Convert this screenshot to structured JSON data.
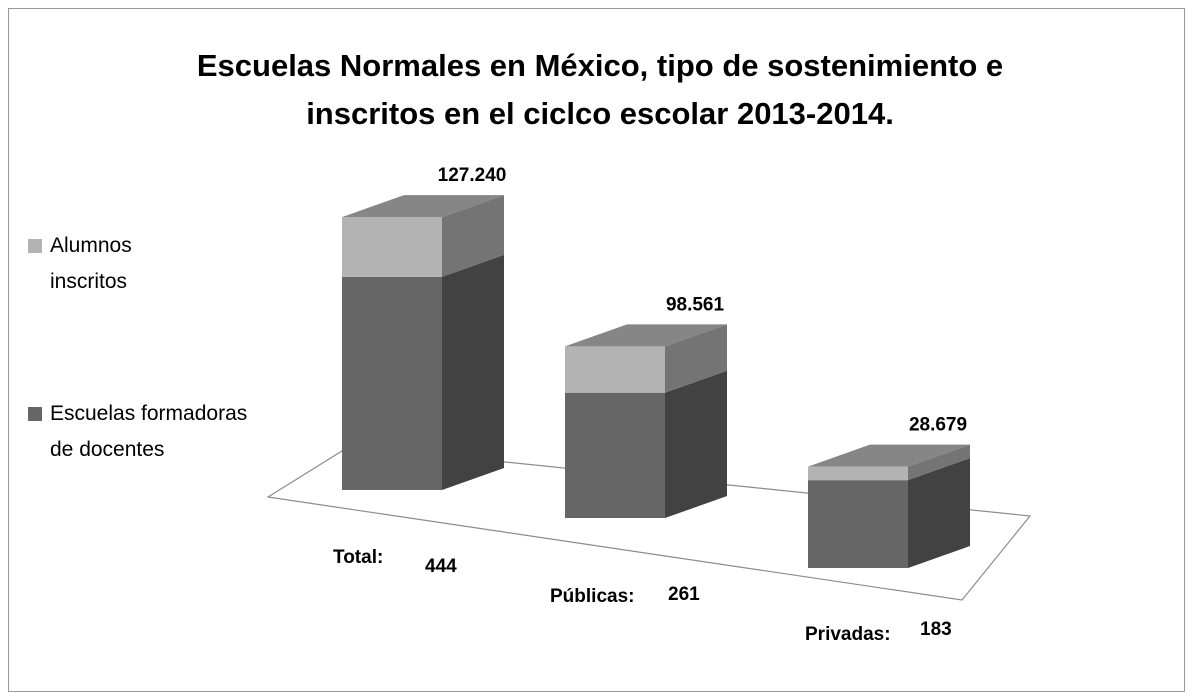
{
  "chart_data": {
    "type": "bar3d_stacked",
    "title": "Escuelas Normales en México, tipo de sostenimiento e inscritos en el ciclco escolar 2013-2014.",
    "categories": [
      "Total:",
      "Públicas:",
      "Privadas:"
    ],
    "series": [
      {
        "name": "Escuelas formadoras de docentes",
        "color": "#666666",
        "values": [
          444,
          261,
          183
        ]
      },
      {
        "name": "Alumnos inscritos",
        "color": "#b3b3b3",
        "values": [
          127240,
          98561,
          28679
        ],
        "value_labels": [
          "127.240",
          "98.561",
          "28.679"
        ]
      }
    ]
  }
}
